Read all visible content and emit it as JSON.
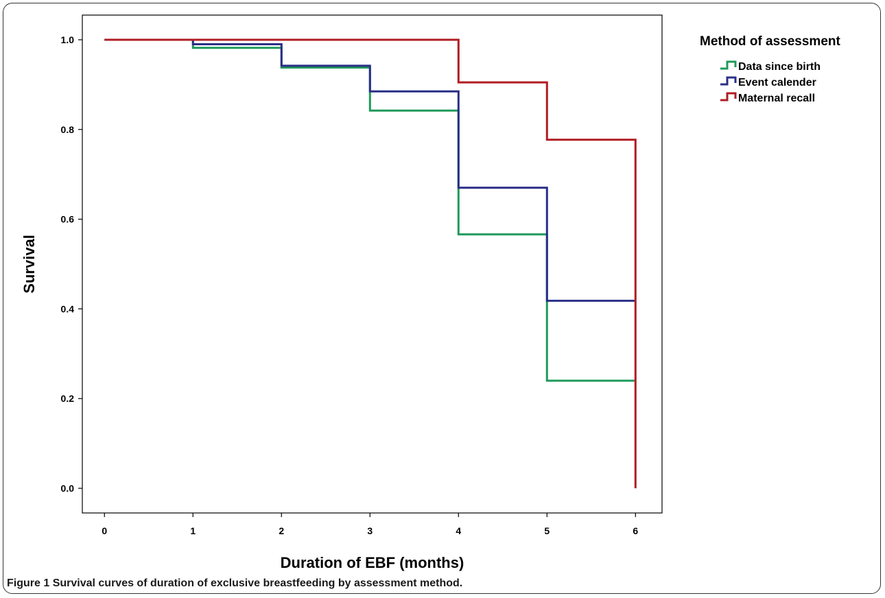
{
  "caption": {
    "label": "Figure 1",
    "text": "Survival curves of duration of exclusive breastfeeding by assessment method."
  },
  "chart_data": {
    "type": "line",
    "step": true,
    "xlabel": "Duration of EBF (months)",
    "ylabel": "Survival",
    "xlim": [
      -0.25,
      6.3
    ],
    "ylim": [
      -0.055,
      1.055
    ],
    "xticks": [
      "0",
      "1",
      "2",
      "3",
      "4",
      "5",
      "6"
    ],
    "yticks": [
      "0.0",
      "0.2",
      "0.4",
      "0.6",
      "0.8",
      "1.0"
    ],
    "grid": false,
    "legend": {
      "title": "Method of assessment",
      "position": "top-right"
    },
    "series": [
      {
        "name": "Data since birth",
        "color": "#1f9a5a",
        "x": [
          0,
          1,
          2,
          3,
          4,
          5,
          6
        ],
        "y": [
          1.0,
          0.982,
          0.938,
          0.842,
          0.566,
          0.24,
          0.24
        ]
      },
      {
        "name": "Event calender",
        "color": "#2a2f86",
        "x": [
          0,
          1,
          2,
          3,
          4,
          5,
          6
        ],
        "y": [
          1.0,
          0.99,
          0.942,
          0.885,
          0.67,
          0.418,
          0.418
        ]
      },
      {
        "name": "Maternal recall",
        "color": "#b01c24",
        "x": [
          0,
          1,
          2,
          3,
          4,
          5,
          6,
          6
        ],
        "y": [
          1.0,
          1.0,
          1.0,
          1.0,
          0.905,
          0.777,
          0.777,
          0.0
        ]
      }
    ]
  }
}
